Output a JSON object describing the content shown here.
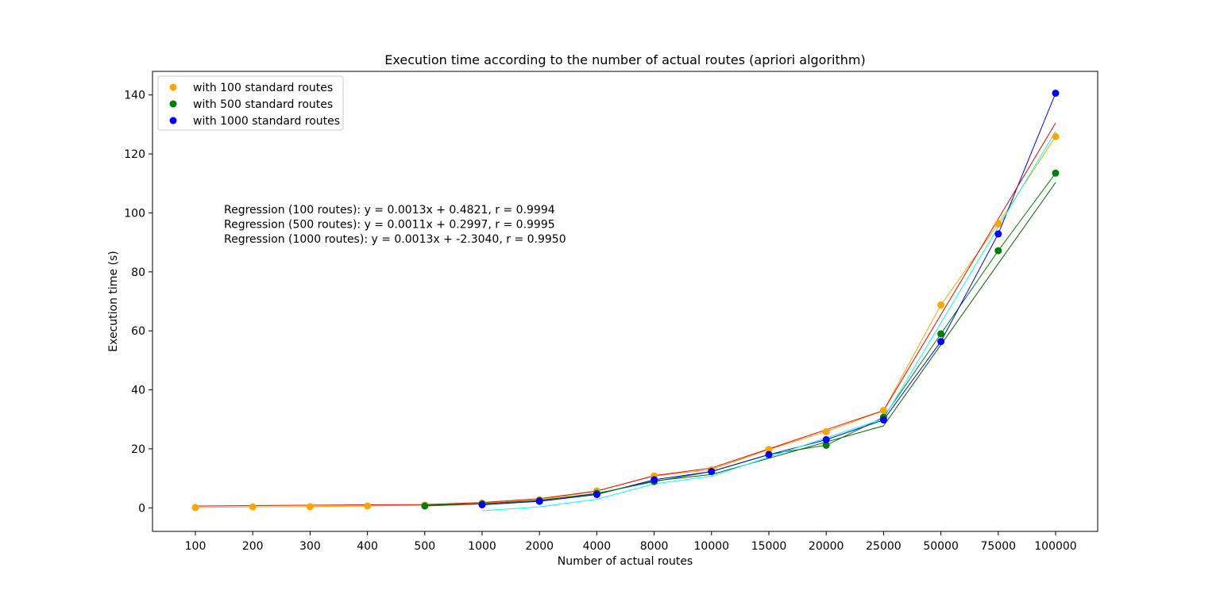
{
  "chart_data": {
    "type": "scatter",
    "title": "Execution time according to the number of actual routes (apriori algorithm)",
    "xlabel": "Number of actual routes",
    "ylabel": "Execution time (s)",
    "x_axis_kind": "categorical",
    "categories": [
      "100",
      "200",
      "300",
      "400",
      "500",
      "1000",
      "2000",
      "4000",
      "8000",
      "10000",
      "15000",
      "20000",
      "25000",
      "50000",
      "75000",
      "100000"
    ],
    "ylim": [
      -8,
      148
    ],
    "yticks": [
      0,
      20,
      40,
      60,
      80,
      100,
      120,
      140
    ],
    "grid": false,
    "legend_position": "upper-left",
    "series": [
      {
        "name": "with 100 standard routes",
        "color": "#ffa500",
        "x": [
          "100",
          "200",
          "300",
          "400",
          "500",
          "1000",
          "2000",
          "4000",
          "8000",
          "10000",
          "15000",
          "20000",
          "25000",
          "50000",
          "75000",
          "100000"
        ],
        "values": [
          0.1,
          0.3,
          0.4,
          0.6,
          0.9,
          1.6,
          2.7,
          5.7,
          10.8,
          12.9,
          19.8,
          25.8,
          33.0,
          68.8,
          96.3,
          125.9
        ]
      },
      {
        "name": "with 500 standard routes",
        "color": "#008000",
        "x": [
          "500",
          "1000",
          "2000",
          "4000",
          "8000",
          "10000",
          "15000",
          "20000",
          "25000",
          "50000",
          "75000",
          "100000"
        ],
        "values": [
          0.6,
          1.3,
          2.5,
          4.9,
          8.9,
          12.3,
          18.1,
          21.2,
          30.7,
          59.0,
          87.2,
          113.5
        ]
      },
      {
        "name": "with 1000 standard routes",
        "color": "#0000ff",
        "x": [
          "1000",
          "2000",
          "4000",
          "8000",
          "10000",
          "15000",
          "20000",
          "25000",
          "50000",
          "75000",
          "100000"
        ],
        "values": [
          1.0,
          2.2,
          4.5,
          9.5,
          12.3,
          18.0,
          23.1,
          29.8,
          56.4,
          92.9,
          140.6
        ]
      }
    ],
    "regression_lines": [
      {
        "label": "Regression (100 routes): y = 0.0013x + 0.4821, r = 0.9994",
        "color": "#ff0000",
        "x": [
          "100",
          "200",
          "300",
          "400",
          "500",
          "1000",
          "2000",
          "4000",
          "8000",
          "10000",
          "15000",
          "20000",
          "25000",
          "50000",
          "75000",
          "100000"
        ],
        "values": [
          0.61,
          0.74,
          0.87,
          1.0,
          1.13,
          1.78,
          3.08,
          5.68,
          10.88,
          13.48,
          19.98,
          26.48,
          32.98,
          65.48,
          97.98,
          130.48
        ]
      },
      {
        "label": "Regression (500 routes): y = 0.0011x + 0.2997, r = 0.9995",
        "color": "#006400",
        "x": [
          "500",
          "1000",
          "2000",
          "4000",
          "8000",
          "10000",
          "15000",
          "20000",
          "25000",
          "50000",
          "75000",
          "100000"
        ],
        "values": [
          0.85,
          1.4,
          2.5,
          4.7,
          9.1,
          11.3,
          16.8,
          22.3,
          27.8,
          55.3,
          82.8,
          110.3
        ]
      },
      {
        "label": "Regression (1000 routes): y = 0.0013x + -2.3040, r = 0.9950",
        "color": "#00008b",
        "x": [
          "1000",
          "2000",
          "4000",
          "8000",
          "10000",
          "15000",
          "20000",
          "25000",
          "50000",
          "75000",
          "100000"
        ],
        "values": [
          -1.0,
          0.3,
          2.9,
          8.1,
          10.7,
          17.2,
          23.7,
          30.2,
          62.7,
          95.2,
          127.7
        ]
      }
    ],
    "annotations": [
      {
        "text": "Regression (100 routes): y = 0.0013x + 0.4821, r = 0.9994",
        "color": "#ff0000"
      },
      {
        "text": "Regression (500 routes): y = 0.0011x + 0.2997, r = 0.9995",
        "color": "#006400"
      },
      {
        "text": "Regression (1000 routes): y = 0.0013x + -2.3040, r = 0.9950",
        "color": "#0000ff"
      }
    ]
  }
}
